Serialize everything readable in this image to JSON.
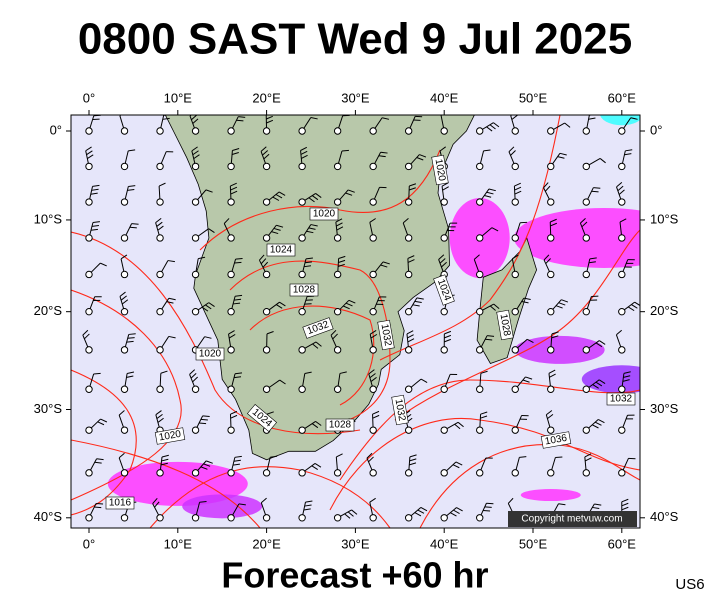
{
  "title": "0800 SAST Wed 9 Jul 2025",
  "footer": "Forecast +60 hr",
  "code": "US6",
  "copyright": "Copyright metvuw.com",
  "lon_labels": [
    "0°",
    "10°E",
    "20°E",
    "30°E",
    "40°E",
    "50°E",
    "60°E"
  ],
  "lat_labels": [
    "0°",
    "10°S",
    "20°S",
    "30°S",
    "40°S"
  ],
  "isobar_labels": [
    "1020",
    "1024",
    "1028",
    "1032",
    "1032",
    "1020",
    "1024",
    "1028",
    "1032",
    "1020",
    "1016",
    "1036",
    "1032",
    "1024",
    "1028",
    "1020"
  ]
}
